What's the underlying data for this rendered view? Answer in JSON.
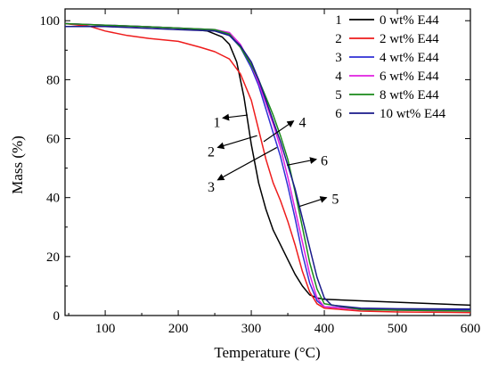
{
  "chart_data": {
    "type": "line",
    "title": "",
    "xlabel": "Temperature (°C)",
    "ylabel": "Mass (%)",
    "xlim": [
      45,
      600
    ],
    "ylim": [
      0,
      104
    ],
    "xticks": [
      "100",
      "200",
      "300",
      "400",
      "500",
      "600"
    ],
    "yticks": [
      "0",
      "20",
      "40",
      "60",
      "80",
      "100"
    ],
    "grid": false,
    "legend_position": "top-right",
    "series": [
      {
        "name": "0 wt% E44",
        "id": "1",
        "color": "#000000",
        "points": [
          [
            45,
            99
          ],
          [
            100,
            98.4
          ],
          [
            150,
            98
          ],
          [
            200,
            97.5
          ],
          [
            240,
            96.5
          ],
          [
            260,
            94.5
          ],
          [
            270,
            92
          ],
          [
            280,
            86
          ],
          [
            290,
            74
          ],
          [
            300,
            58
          ],
          [
            310,
            45
          ],
          [
            320,
            36
          ],
          [
            330,
            29
          ],
          [
            340,
            24
          ],
          [
            350,
            19
          ],
          [
            360,
            14
          ],
          [
            370,
            10
          ],
          [
            380,
            7
          ],
          [
            390,
            6
          ],
          [
            400,
            5.5
          ],
          [
            450,
            5
          ],
          [
            500,
            4.5
          ],
          [
            550,
            4
          ],
          [
            600,
            3.5
          ]
        ]
      },
      {
        "name": "2 wt% E44",
        "id": "2",
        "color": "#ee1c1c",
        "points": [
          [
            45,
            99
          ],
          [
            80,
            98
          ],
          [
            100,
            96.5
          ],
          [
            130,
            95
          ],
          [
            160,
            94
          ],
          [
            200,
            93
          ],
          [
            230,
            91
          ],
          [
            250,
            89.5
          ],
          [
            270,
            87
          ],
          [
            285,
            82
          ],
          [
            300,
            73
          ],
          [
            310,
            63
          ],
          [
            320,
            53
          ],
          [
            330,
            45
          ],
          [
            340,
            39
          ],
          [
            350,
            32
          ],
          [
            360,
            24
          ],
          [
            370,
            15
          ],
          [
            380,
            8
          ],
          [
            390,
            4
          ],
          [
            400,
            2.5
          ],
          [
            450,
            1.5
          ],
          [
            500,
            1.2
          ],
          [
            600,
            1
          ]
        ]
      },
      {
        "name": "4 wt% E44",
        "id": "3",
        "color": "#2f2fd4",
        "points": [
          [
            45,
            99
          ],
          [
            100,
            98.5
          ],
          [
            150,
            98
          ],
          [
            200,
            97.5
          ],
          [
            250,
            97
          ],
          [
            270,
            95
          ],
          [
            285,
            91
          ],
          [
            300,
            84
          ],
          [
            310,
            78
          ],
          [
            320,
            70
          ],
          [
            330,
            62
          ],
          [
            340,
            54
          ],
          [
            350,
            44
          ],
          [
            360,
            33
          ],
          [
            370,
            21
          ],
          [
            380,
            11
          ],
          [
            390,
            5
          ],
          [
            400,
            3
          ],
          [
            450,
            2.2
          ],
          [
            500,
            2
          ],
          [
            600,
            2
          ]
        ]
      },
      {
        "name": "6 wt% E44",
        "id": "4",
        "color": "#e020e0",
        "points": [
          [
            45,
            99
          ],
          [
            100,
            98.5
          ],
          [
            150,
            98
          ],
          [
            200,
            97.5
          ],
          [
            250,
            97
          ],
          [
            270,
            96
          ],
          [
            285,
            92
          ],
          [
            300,
            85
          ],
          [
            310,
            79
          ],
          [
            320,
            72
          ],
          [
            330,
            65
          ],
          [
            340,
            57
          ],
          [
            350,
            47
          ],
          [
            360,
            36
          ],
          [
            370,
            25
          ],
          [
            380,
            14
          ],
          [
            390,
            6
          ],
          [
            400,
            3
          ],
          [
            450,
            2
          ],
          [
            500,
            1.8
          ],
          [
            600,
            1.5
          ]
        ]
      },
      {
        "name": "8 wt% E44",
        "id": "5",
        "color": "#1a8a1a",
        "points": [
          [
            45,
            99
          ],
          [
            100,
            98.5
          ],
          [
            150,
            98
          ],
          [
            200,
            97.5
          ],
          [
            250,
            97
          ],
          [
            270,
            95.5
          ],
          [
            285,
            91
          ],
          [
            300,
            85
          ],
          [
            310,
            80
          ],
          [
            320,
            74
          ],
          [
            330,
            68
          ],
          [
            340,
            61
          ],
          [
            350,
            53
          ],
          [
            360,
            42
          ],
          [
            370,
            30
          ],
          [
            380,
            18
          ],
          [
            390,
            9
          ],
          [
            400,
            4
          ],
          [
            450,
            2
          ],
          [
            500,
            1.8
          ],
          [
            600,
            1.5
          ]
        ]
      },
      {
        "name": "10 wt% E44",
        "id": "6",
        "color": "#1a1a8a",
        "points": [
          [
            45,
            98
          ],
          [
            100,
            98
          ],
          [
            150,
            97.5
          ],
          [
            200,
            97
          ],
          [
            250,
            96.5
          ],
          [
            270,
            95
          ],
          [
            285,
            91.5
          ],
          [
            300,
            86
          ],
          [
            310,
            80
          ],
          [
            320,
            73
          ],
          [
            330,
            66
          ],
          [
            340,
            59
          ],
          [
            350,
            51
          ],
          [
            360,
            43
          ],
          [
            370,
            33
          ],
          [
            380,
            23
          ],
          [
            390,
            13
          ],
          [
            400,
            6
          ],
          [
            410,
            3.5
          ],
          [
            450,
            2.5
          ],
          [
            500,
            2.3
          ],
          [
            600,
            2.2
          ]
        ]
      }
    ],
    "annotations": [
      {
        "label": "1",
        "arrow_from": [
          295,
          68
        ],
        "arrow_to": [
          261,
          67
        ],
        "text_at": [
          253,
          64
        ]
      },
      {
        "label": "2",
        "arrow_from": [
          308,
          61
        ],
        "arrow_to": [
          254,
          57
        ],
        "text_at": [
          245,
          54
        ]
      },
      {
        "label": "3",
        "arrow_from": [
          335,
          57
        ],
        "arrow_to": [
          254,
          46
        ],
        "text_at": [
          245,
          42
        ]
      },
      {
        "label": "4",
        "arrow_from": [
          317,
          59
        ],
        "arrow_to": [
          358,
          66
        ],
        "text_at": [
          370,
          64
        ]
      },
      {
        "label": "6",
        "arrow_from": [
          349,
          51
        ],
        "arrow_to": [
          389,
          53
        ],
        "text_at": [
          400,
          51
        ]
      },
      {
        "label": "5",
        "arrow_from": [
          366,
          37
        ],
        "arrow_to": [
          403,
          40
        ],
        "text_at": [
          415,
          38
        ]
      }
    ]
  }
}
